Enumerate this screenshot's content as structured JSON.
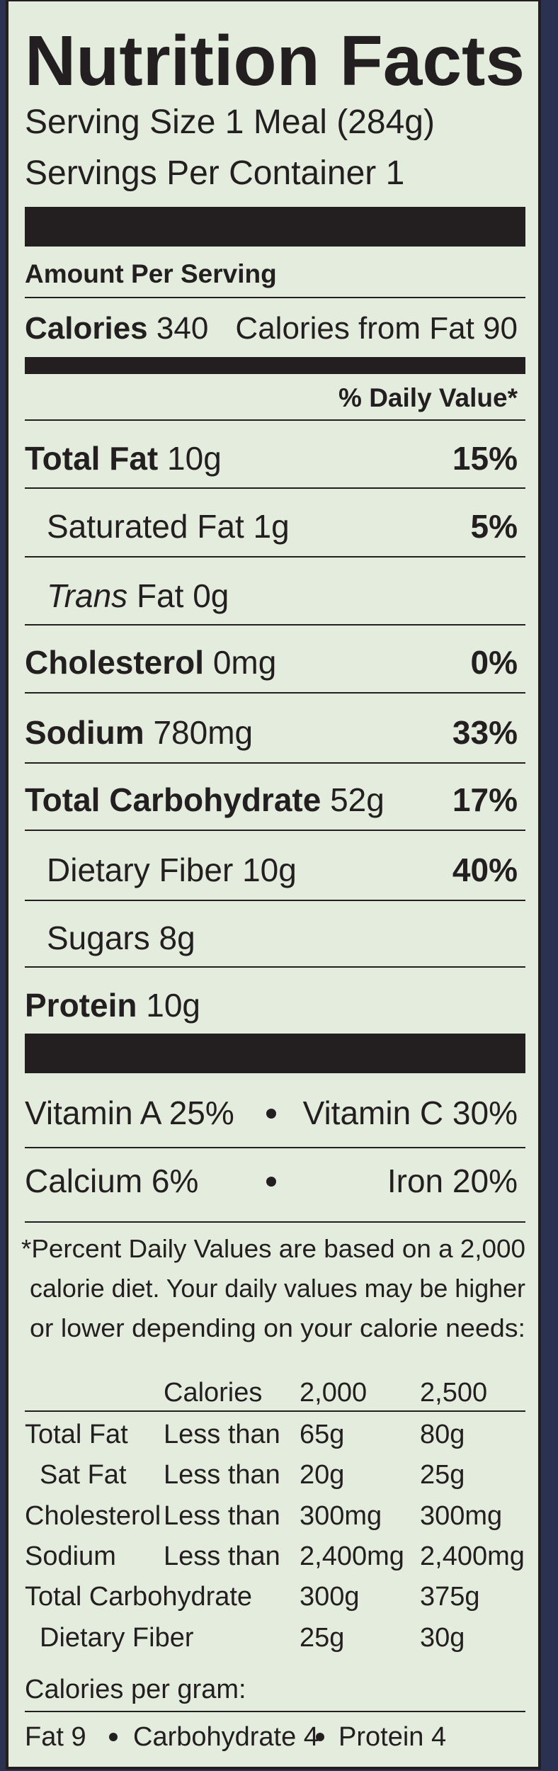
{
  "header": {
    "title": "Nutrition Facts",
    "serving_size": "Serving Size 1 Meal (284g)",
    "servings_per_container": "Servings Per Container 1"
  },
  "calories": {
    "heading": "Amount Per Serving",
    "label": "Calories",
    "value": "340",
    "from_fat": "Calories from Fat 90"
  },
  "daily_value_heading": "% Daily Value*",
  "nutrients": [
    {
      "name": "Total Fat",
      "amount": "10g",
      "dv": "15%",
      "bold": true,
      "indent": false
    },
    {
      "name": "Saturated Fat",
      "amount": "1g",
      "dv": "5%",
      "bold": false,
      "indent": true
    },
    {
      "name_italic": "Trans",
      "name": "Fat",
      "amount": "0g",
      "bold": false,
      "indent": true
    },
    {
      "name": "Cholesterol",
      "amount": "0mg",
      "dv": "0%",
      "bold": true,
      "indent": false
    },
    {
      "name": "Sodium",
      "amount": "780mg",
      "dv": "33%",
      "bold": true,
      "indent": false
    },
    {
      "name": "Total Carbohydrate",
      "amount": "52g",
      "dv": "17%",
      "bold": true,
      "indent": false
    },
    {
      "name": "Dietary Fiber",
      "amount": "10g",
      "dv": "40%",
      "bold": false,
      "indent": true
    },
    {
      "name": "Sugars",
      "amount": "8g",
      "bold": false,
      "indent": true
    },
    {
      "name": "Protein",
      "amount": "10g",
      "bold": true,
      "indent": false
    }
  ],
  "vitamins": [
    [
      "Vitamin A 25%",
      "Vitamin C 30%"
    ],
    [
      "Calcium 6%",
      "Iron 20%"
    ]
  ],
  "footnote": [
    "*Percent Daily Values are based on a 2,000",
    "calorie diet. Your daily values may be higher",
    "or lower depending on your calorie needs:"
  ],
  "table": {
    "header": [
      "Calories",
      "2,000",
      "2,500"
    ],
    "rows": [
      {
        "nutrient": "Total Fat",
        "limit": "Less than",
        "v2000": "65g",
        "v2500": "80g",
        "indent": false
      },
      {
        "nutrient": "Sat Fat",
        "limit": "Less than",
        "v2000": "20g",
        "v2500": "25g",
        "indent": true
      },
      {
        "nutrient": "Cholesterol",
        "limit": "Less than",
        "v2000": "300mg",
        "v2500": "300mg",
        "indent": false
      },
      {
        "nutrient": "Sodium",
        "limit": "Less than",
        "v2000": "2,400mg",
        "v2500": "2,400mg",
        "indent": false
      },
      {
        "nutrient": "Total Carbohydrate",
        "v2000": "300g",
        "v2500": "375g",
        "indent": false
      },
      {
        "nutrient": "Dietary Fiber",
        "v2000": "25g",
        "v2500": "30g",
        "indent": true
      }
    ]
  },
  "calories_per_gram": {
    "heading": "Calories per gram:",
    "items": [
      "Fat 9",
      "Carbohydrate 4",
      "Protein 4"
    ]
  }
}
